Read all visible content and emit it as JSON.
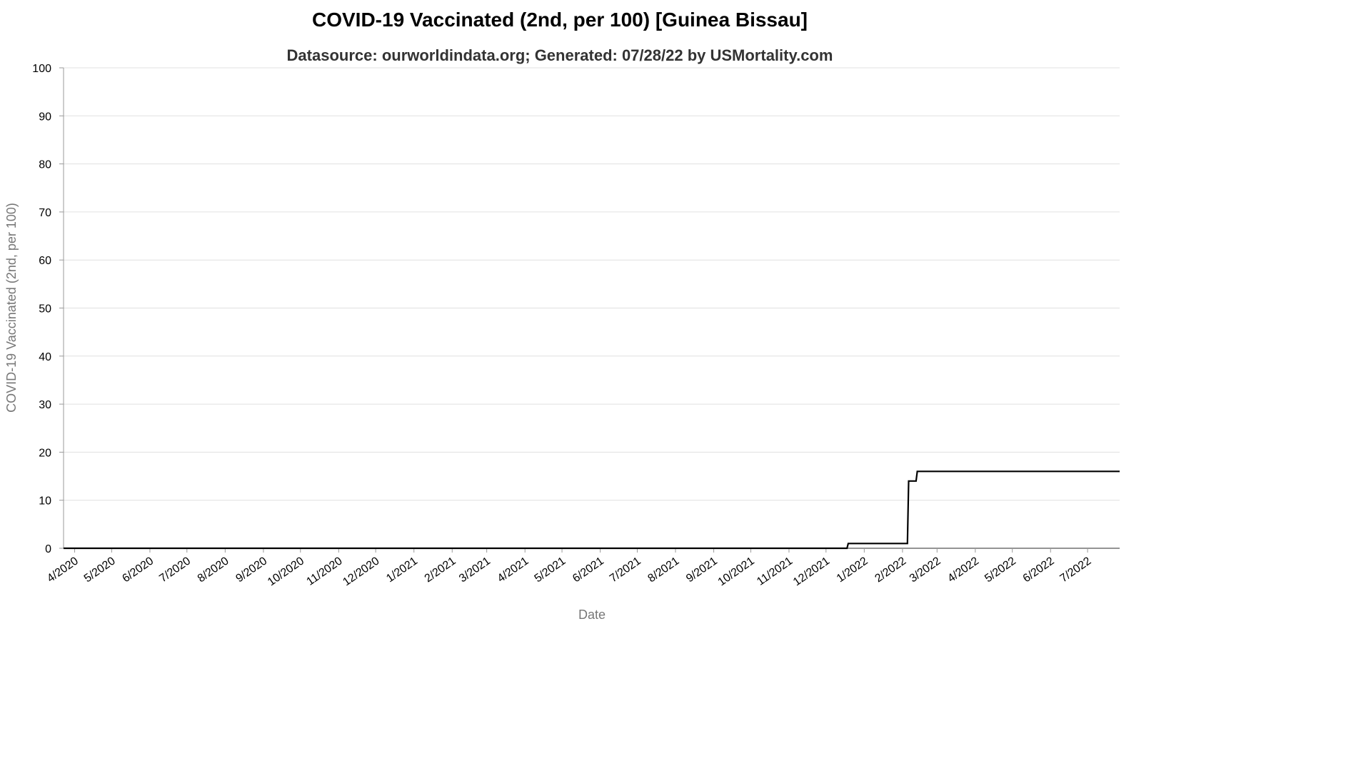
{
  "chart_data": {
    "type": "line",
    "title": "COVID-19 Vaccinated (2nd, per 100) [Guinea Bissau]",
    "subtitle": "Datasource: ourworldindata.org; Generated: 07/28/22 by USMortality.com",
    "xlabel": "Date",
    "ylabel": "COVID-19 Vaccinated (2nd, per 100)",
    "ylim": [
      0,
      100
    ],
    "yticks": [
      0,
      10,
      20,
      30,
      40,
      50,
      60,
      70,
      80,
      90,
      100
    ],
    "xlim": [
      "2020-03-23",
      "2022-07-27"
    ],
    "xticks": [
      {
        "date": "2020-04-01",
        "label": "4/2020"
      },
      {
        "date": "2020-05-01",
        "label": "5/2020"
      },
      {
        "date": "2020-06-01",
        "label": "6/2020"
      },
      {
        "date": "2020-07-01",
        "label": "7/2020"
      },
      {
        "date": "2020-08-01",
        "label": "8/2020"
      },
      {
        "date": "2020-09-01",
        "label": "9/2020"
      },
      {
        "date": "2020-10-01",
        "label": "10/2020"
      },
      {
        "date": "2020-11-01",
        "label": "11/2020"
      },
      {
        "date": "2020-12-01",
        "label": "12/2020"
      },
      {
        "date": "2021-01-01",
        "label": "1/2021"
      },
      {
        "date": "2021-02-01",
        "label": "2/2021"
      },
      {
        "date": "2021-03-01",
        "label": "3/2021"
      },
      {
        "date": "2021-04-01",
        "label": "4/2021"
      },
      {
        "date": "2021-05-01",
        "label": "5/2021"
      },
      {
        "date": "2021-06-01",
        "label": "6/2021"
      },
      {
        "date": "2021-07-01",
        "label": "7/2021"
      },
      {
        "date": "2021-08-01",
        "label": "8/2021"
      },
      {
        "date": "2021-09-01",
        "label": "9/2021"
      },
      {
        "date": "2021-10-01",
        "label": "10/2021"
      },
      {
        "date": "2021-11-01",
        "label": "11/2021"
      },
      {
        "date": "2021-12-01",
        "label": "12/2021"
      },
      {
        "date": "2022-01-01",
        "label": "1/2022"
      },
      {
        "date": "2022-02-01",
        "label": "2/2022"
      },
      {
        "date": "2022-03-01",
        "label": "3/2022"
      },
      {
        "date": "2022-04-01",
        "label": "4/2022"
      },
      {
        "date": "2022-05-01",
        "label": "5/2022"
      },
      {
        "date": "2022-06-01",
        "label": "6/2022"
      },
      {
        "date": "2022-07-01",
        "label": "7/2022"
      }
    ],
    "grid": true,
    "series": [
      {
        "color": "#000000",
        "points": [
          {
            "x": "2020-03-23",
            "y": 0
          },
          {
            "x": "2021-12-18",
            "y": 0
          },
          {
            "x": "2021-12-19",
            "y": 1
          },
          {
            "x": "2022-02-05",
            "y": 1
          },
          {
            "x": "2022-02-06",
            "y": 14
          },
          {
            "x": "2022-02-12",
            "y": 14
          },
          {
            "x": "2022-02-13",
            "y": 16
          },
          {
            "x": "2022-07-27",
            "y": 16
          }
        ]
      }
    ]
  }
}
